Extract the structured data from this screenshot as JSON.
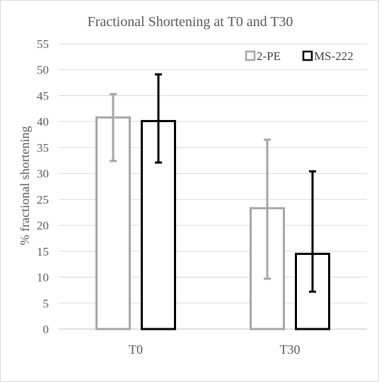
{
  "chart_data": {
    "type": "bar",
    "title": "Fractional Shortening at T0 and T30",
    "xlabel": "",
    "ylabel": "% fractional shortening",
    "ylim": [
      0,
      55
    ],
    "yticks": [
      0,
      5,
      10,
      15,
      20,
      25,
      30,
      35,
      40,
      45,
      50,
      55
    ],
    "grid": true,
    "legend_position": "top-right",
    "categories": [
      "T0",
      "T30"
    ],
    "series": [
      {
        "name": "2-PE",
        "color": "#a6a6a6",
        "values": [
          40.8,
          23.3
        ],
        "error_low": [
          32.4,
          9.7
        ],
        "error_high": [
          45.3,
          36.5
        ]
      },
      {
        "name": "MS-222",
        "color": "#000000",
        "values": [
          40.1,
          14.5
        ],
        "error_low": [
          32.1,
          7.2
        ],
        "error_high": [
          49.1,
          30.4
        ]
      }
    ]
  }
}
